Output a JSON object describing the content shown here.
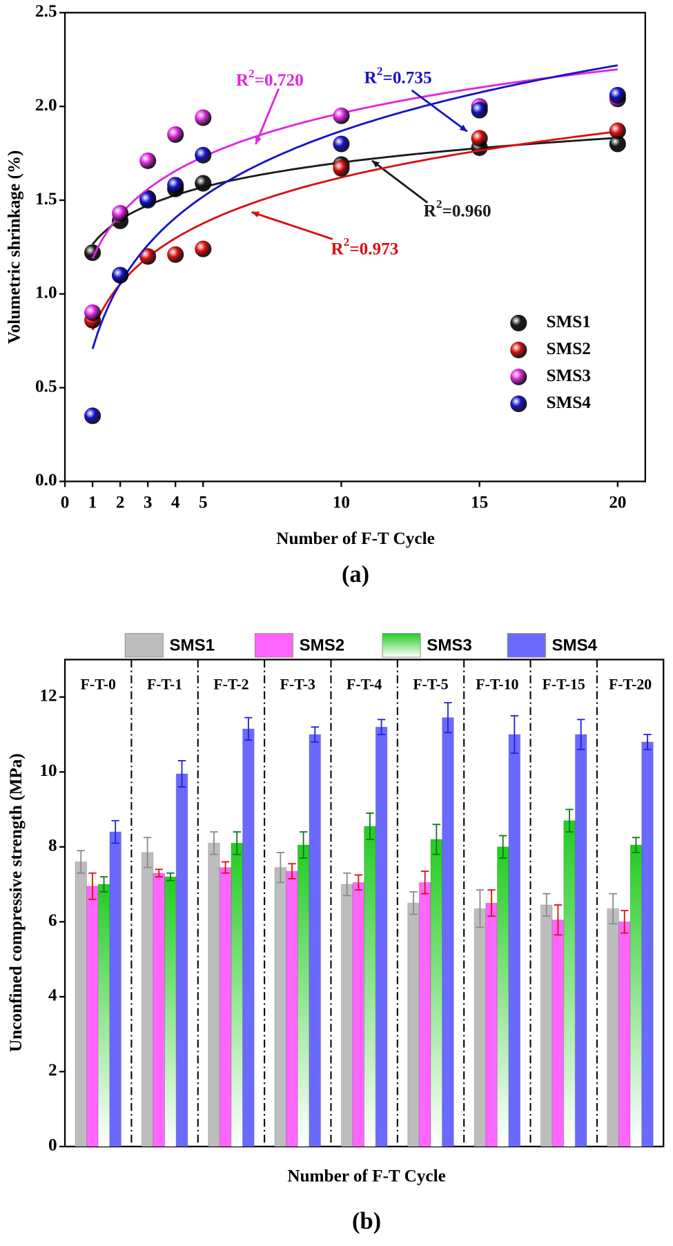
{
  "chart_data": [
    {
      "type": "scatter",
      "caption": "(a)",
      "xlabel": "Number of F-T Cycle",
      "ylabel": "Volumetric shrinkage (%)",
      "x": [
        1,
        2,
        3,
        4,
        5,
        10,
        15,
        20
      ],
      "xlim": [
        0,
        21
      ],
      "ylim": [
        0,
        2.5
      ],
      "xticks": [
        0,
        1,
        2,
        3,
        4,
        5,
        10,
        15,
        20
      ],
      "yticks": [
        {
          "value": 0,
          "label": "0.0"
        },
        0.5,
        {
          "value": 1,
          "label": "1.0"
        },
        1.5,
        {
          "value": 2,
          "label": "2.0"
        },
        2.5
      ],
      "fit": "log",
      "series": [
        {
          "name": "SMS1",
          "color": "#1a1a1a",
          "values": [
            1.22,
            1.39,
            1.51,
            1.56,
            1.59,
            1.69,
            1.78,
            1.8
          ],
          "fit_label": {
            "prefix": "R",
            "sup": "2",
            "suffix": "=0.960"
          }
        },
        {
          "name": "SMS2",
          "color": "#d81010",
          "values": [
            0.86,
            1.1,
            1.2,
            1.21,
            1.24,
            1.67,
            1.83,
            1.87
          ],
          "fit_label": {
            "prefix": "R",
            "sup": "2",
            "suffix": "=0.973"
          }
        },
        {
          "name": "SMS3",
          "color": "#e026e0",
          "values": [
            0.9,
            1.43,
            1.71,
            1.85,
            1.94,
            1.95,
            2.0,
            2.04
          ],
          "fit_label": {
            "prefix": "R",
            "sup": "2",
            "suffix": "=0.720"
          }
        },
        {
          "name": "SMS4",
          "color": "#1414c8",
          "values": [
            0.35,
            1.1,
            1.5,
            1.58,
            1.74,
            1.8,
            1.98,
            2.06
          ],
          "fit_label": {
            "prefix": "R",
            "sup": "2",
            "suffix": "=0.735"
          }
        }
      ]
    },
    {
      "type": "bar",
      "caption": "(b)",
      "xlabel": "Number of F-T Cycle",
      "ylabel": "Unconfined compressive strength (MPa)",
      "categories": [
        "F-T-0",
        "F-T-1",
        "F-T-2",
        "F-T-3",
        "F-T-4",
        "F-T-5",
        "F-T-10",
        "F-T-15",
        "F-T-20"
      ],
      "ylim": [
        0,
        13
      ],
      "yticks": [
        0,
        2,
        4,
        6,
        8,
        10,
        12
      ],
      "series": [
        {
          "name": "SMS1",
          "color": "#bdbdbd",
          "error_color": "#8a8a8a",
          "fill_style": "solid",
          "values": [
            7.6,
            7.85,
            8.1,
            7.45,
            7.0,
            6.5,
            6.35,
            6.45,
            6.35
          ],
          "errors": [
            0.3,
            0.4,
            0.3,
            0.4,
            0.3,
            0.3,
            0.5,
            0.3,
            0.4
          ]
        },
        {
          "name": "SMS2",
          "color": "#ff66ff",
          "error_color": "#e01010",
          "fill_style": "solid",
          "values": [
            6.95,
            7.3,
            7.45,
            7.35,
            7.05,
            7.05,
            6.5,
            6.05,
            6.0
          ],
          "errors": [
            0.35,
            0.1,
            0.15,
            0.2,
            0.2,
            0.3,
            0.35,
            0.4,
            0.3
          ]
        },
        {
          "name": "SMS3",
          "color": "#22cc22",
          "error_color": "#117711",
          "fill_style": "gradient",
          "values": [
            7.0,
            7.2,
            8.1,
            8.05,
            8.55,
            8.2,
            8.0,
            8.7,
            8.05
          ],
          "errors": [
            0.2,
            0.1,
            0.3,
            0.35,
            0.35,
            0.4,
            0.3,
            0.3,
            0.2
          ]
        },
        {
          "name": "SMS4",
          "color": "#6a6aff",
          "error_color": "#2020dd",
          "fill_style": "solid",
          "values": [
            8.4,
            9.95,
            11.15,
            11.0,
            11.2,
            11.45,
            11.0,
            11.0,
            10.8
          ],
          "errors": [
            0.3,
            0.35,
            0.3,
            0.2,
            0.2,
            0.4,
            0.5,
            0.4,
            0.2
          ]
        }
      ]
    }
  ]
}
